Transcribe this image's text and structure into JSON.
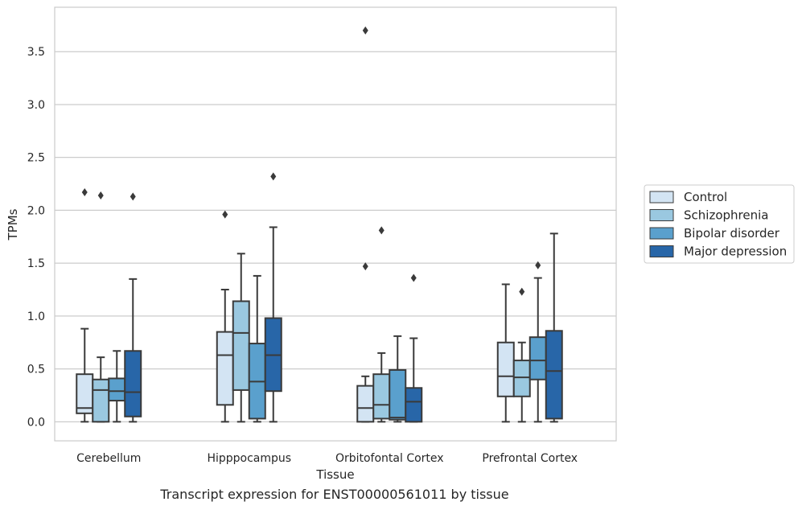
{
  "caption": "Transcript expression for ENST00000561011 by tissue",
  "chart_data": {
    "type": "box",
    "xlabel": "Tissue",
    "ylabel": "TPMs",
    "ylim": [
      -0.18,
      3.92
    ],
    "yticks": [
      0.0,
      0.5,
      1.0,
      1.5,
      2.0,
      2.5,
      3.0,
      3.5
    ],
    "ytick_labels": [
      "0.0",
      "0.5",
      "1.0",
      "1.5",
      "2.0",
      "2.5",
      "3.0",
      "3.5"
    ],
    "grid": "horizontal",
    "legend_position": "right",
    "categories": [
      "Cerebellum",
      "Hipppocampus",
      "Orbitofontal Cortex",
      "Prefrontal Cortex"
    ],
    "series": [
      {
        "name": "Control",
        "color": "#d3e4f3",
        "boxes": [
          {
            "whislo": 0.0,
            "q1": 0.08,
            "med": 0.13,
            "q3": 0.45,
            "whishi": 0.88,
            "fliers": [
              2.17
            ]
          },
          {
            "whislo": 0.0,
            "q1": 0.16,
            "med": 0.63,
            "q3": 0.85,
            "whishi": 1.25,
            "fliers": [
              1.96
            ]
          },
          {
            "whislo": 0.0,
            "q1": 0.0,
            "med": 0.13,
            "q3": 0.34,
            "whishi": 0.43,
            "fliers": [
              1.47,
              3.7
            ]
          },
          {
            "whislo": 0.0,
            "q1": 0.24,
            "med": 0.43,
            "q3": 0.75,
            "whishi": 1.3,
            "fliers": []
          }
        ]
      },
      {
        "name": "Schizophrenia",
        "color": "#9ac8e0",
        "boxes": [
          {
            "whislo": 0.0,
            "q1": 0.0,
            "med": 0.3,
            "q3": 0.4,
            "whishi": 0.61,
            "fliers": [
              2.14
            ]
          },
          {
            "whislo": 0.0,
            "q1": 0.3,
            "med": 0.84,
            "q3": 1.14,
            "whishi": 1.59,
            "fliers": []
          },
          {
            "whislo": 0.0,
            "q1": 0.03,
            "med": 0.16,
            "q3": 0.45,
            "whishi": 0.65,
            "fliers": [
              1.81
            ]
          },
          {
            "whislo": 0.0,
            "q1": 0.24,
            "med": 0.42,
            "q3": 0.58,
            "whishi": 0.75,
            "fliers": [
              1.23
            ]
          }
        ]
      },
      {
        "name": "Bipolar disorder",
        "color": "#5aa0cd",
        "boxes": [
          {
            "whislo": 0.0,
            "q1": 0.2,
            "med": 0.29,
            "q3": 0.41,
            "whishi": 0.67,
            "fliers": []
          },
          {
            "whislo": 0.0,
            "q1": 0.03,
            "med": 0.38,
            "q3": 0.74,
            "whishi": 1.38,
            "fliers": []
          },
          {
            "whislo": 0.0,
            "q1": 0.02,
            "med": 0.04,
            "q3": 0.49,
            "whishi": 0.81,
            "fliers": []
          },
          {
            "whislo": 0.0,
            "q1": 0.4,
            "med": 0.58,
            "q3": 0.8,
            "whishi": 1.36,
            "fliers": [
              1.48
            ]
          }
        ]
      },
      {
        "name": "Major depression",
        "color": "#2866a8",
        "boxes": [
          {
            "whislo": 0.0,
            "q1": 0.05,
            "med": 0.28,
            "q3": 0.67,
            "whishi": 1.35,
            "fliers": [
              2.13
            ]
          },
          {
            "whislo": 0.0,
            "q1": 0.29,
            "med": 0.63,
            "q3": 0.98,
            "whishi": 1.84,
            "fliers": [
              2.32
            ]
          },
          {
            "whislo": 0.0,
            "q1": 0.0,
            "med": 0.19,
            "q3": 0.32,
            "whishi": 0.79,
            "fliers": [
              1.36
            ]
          },
          {
            "whislo": 0.0,
            "q1": 0.03,
            "med": 0.48,
            "q3": 0.86,
            "whishi": 1.78,
            "fliers": []
          }
        ]
      }
    ]
  }
}
